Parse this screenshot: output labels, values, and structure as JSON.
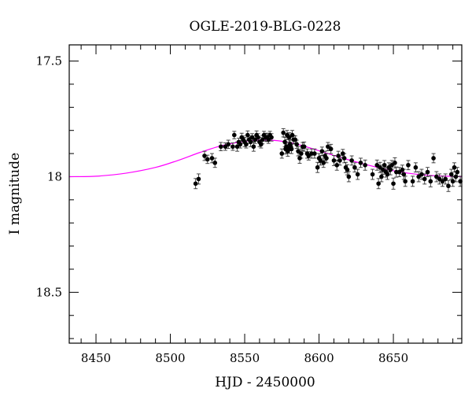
{
  "chart_data": {
    "type": "scatter",
    "title": "OGLE-2019-BLG-0228",
    "xlabel": "HJD - 2450000",
    "ylabel": "I magnitude",
    "xlim": [
      8432,
      8696
    ],
    "ylim": [
      18.72,
      17.43
    ],
    "y_inverted": true,
    "x_major_ticks": [
      8450,
      8500,
      8550,
      8600,
      8650
    ],
    "x_minor_step": 10,
    "x_tick_labels": [
      "8450",
      "8500",
      "8550",
      "8600",
      "8650"
    ],
    "y_major_ticks": [
      17.5,
      18,
      18.5
    ],
    "y_minor_step": 0.1,
    "y_tick_labels": [
      "17.5",
      "18",
      "18.5"
    ],
    "grid": false,
    "legend": "none",
    "colors": {
      "data": "#000000",
      "model": "#ff00ff"
    },
    "model": {
      "name": "",
      "x": [
        8432,
        8450,
        8470,
        8490,
        8505,
        8520,
        8535,
        8550,
        8560,
        8570,
        8580,
        8590,
        8600,
        8615,
        8630,
        8645,
        8660,
        8675,
        8696
      ],
      "y": [
        18.0,
        17.998,
        17.985,
        17.96,
        17.93,
        17.895,
        17.865,
        17.847,
        17.842,
        17.843,
        17.852,
        17.868,
        17.888,
        17.918,
        17.945,
        17.968,
        17.985,
        17.995,
        18.0
      ]
    },
    "series": [
      {
        "name": "",
        "x": [
          8517,
          8519,
          8523,
          8525,
          8528,
          8530,
          8534,
          8537,
          8539,
          8542,
          8543,
          8545,
          8546,
          8547,
          8548,
          8549,
          8550,
          8551,
          8552,
          8553,
          8554,
          8555,
          8556,
          8557,
          8558,
          8559,
          8560,
          8561,
          8562,
          8563,
          8564,
          8565,
          8566,
          8567,
          8568,
          8575,
          8576,
          8577,
          8577.5,
          8578,
          8578.5,
          8579,
          8579.5,
          8580,
          8580.5,
          8581,
          8581.5,
          8582,
          8583,
          8584,
          8585,
          8586,
          8587,
          8588,
          8589,
          8590,
          8592,
          8593,
          8595,
          8597,
          8599,
          8600,
          8601,
          8602,
          8603,
          8604,
          8605,
          8606,
          8608,
          8610,
          8612,
          8613,
          8614,
          8616,
          8617,
          8618,
          8619,
          8620,
          8622,
          8624,
          8626,
          8628,
          8631,
          8636,
          8639,
          8640,
          8641,
          8642,
          8643,
          8644,
          8645,
          8646,
          8647,
          8648,
          8649,
          8650,
          8651,
          8652,
          8654,
          8656,
          8657,
          8658,
          8660,
          8663,
          8665,
          8667,
          8669,
          8671,
          8673,
          8675,
          8677,
          8679,
          8681,
          8683,
          8685,
          8687,
          8689,
          8690,
          8691,
          8692,
          8693,
          8695
        ],
        "y": [
          18.03,
          18.01,
          17.91,
          17.925,
          17.92,
          17.94,
          17.87,
          17.87,
          17.86,
          17.87,
          17.82,
          17.87,
          17.85,
          17.86,
          17.83,
          17.84,
          17.85,
          17.86,
          17.82,
          17.84,
          17.85,
          17.83,
          17.87,
          17.84,
          17.82,
          17.83,
          17.85,
          17.86,
          17.84,
          17.82,
          17.83,
          17.83,
          17.84,
          17.82,
          17.83,
          17.9,
          17.81,
          17.85,
          17.88,
          17.87,
          17.82,
          17.89,
          17.88,
          17.83,
          17.86,
          17.87,
          17.88,
          17.82,
          17.84,
          17.84,
          17.86,
          17.89,
          17.92,
          17.9,
          17.87,
          17.87,
          17.9,
          17.91,
          17.9,
          17.9,
          17.96,
          17.92,
          17.93,
          17.89,
          17.94,
          17.91,
          17.92,
          17.87,
          17.88,
          17.93,
          17.95,
          17.91,
          17.93,
          17.9,
          17.92,
          17.96,
          17.97,
          18.0,
          17.93,
          17.96,
          17.99,
          17.94,
          17.95,
          17.99,
          17.95,
          18.03,
          17.96,
          18.0,
          17.97,
          17.95,
          17.98,
          17.99,
          17.96,
          17.97,
          17.95,
          18.03,
          17.94,
          17.98,
          17.98,
          17.97,
          17.99,
          18.02,
          17.95,
          18.02,
          17.96,
          18.0,
          17.99,
          18.01,
          17.98,
          18.02,
          17.92,
          18.0,
          18.01,
          18.02,
          18.01,
          18.04,
          17.99,
          18.02,
          17.96,
          18.0,
          17.98,
          18.02
        ],
        "err": [
          0.022,
          0.022,
          0.02,
          0.018,
          0.02,
          0.02,
          0.018,
          0.016,
          0.018,
          0.016,
          0.016,
          0.02,
          0.016,
          0.016,
          0.018,
          0.016,
          0.02,
          0.016,
          0.018,
          0.016,
          0.02,
          0.016,
          0.02,
          0.016,
          0.018,
          0.016,
          0.02,
          0.016,
          0.018,
          0.016,
          0.016,
          0.018,
          0.016,
          0.016,
          0.016,
          0.02,
          0.018,
          0.02,
          0.022,
          0.018,
          0.02,
          0.022,
          0.018,
          0.02,
          0.018,
          0.018,
          0.02,
          0.02,
          0.018,
          0.016,
          0.018,
          0.02,
          0.022,
          0.02,
          0.018,
          0.02,
          0.02,
          0.018,
          0.02,
          0.02,
          0.022,
          0.02,
          0.02,
          0.018,
          0.02,
          0.02,
          0.02,
          0.018,
          0.02,
          0.022,
          0.022,
          0.02,
          0.02,
          0.018,
          0.02,
          0.022,
          0.022,
          0.022,
          0.02,
          0.02,
          0.022,
          0.02,
          0.022,
          0.022,
          0.022,
          0.022,
          0.022,
          0.022,
          0.02,
          0.02,
          0.022,
          0.022,
          0.02,
          0.022,
          0.02,
          0.024,
          0.022,
          0.022,
          0.02,
          0.02,
          0.022,
          0.022,
          0.02,
          0.022,
          0.02,
          0.022,
          0.022,
          0.022,
          0.02,
          0.024,
          0.02,
          0.022,
          0.022,
          0.022,
          0.022,
          0.024,
          0.022,
          0.022,
          0.02,
          0.022,
          0.02,
          0.022
        ]
      }
    ]
  }
}
